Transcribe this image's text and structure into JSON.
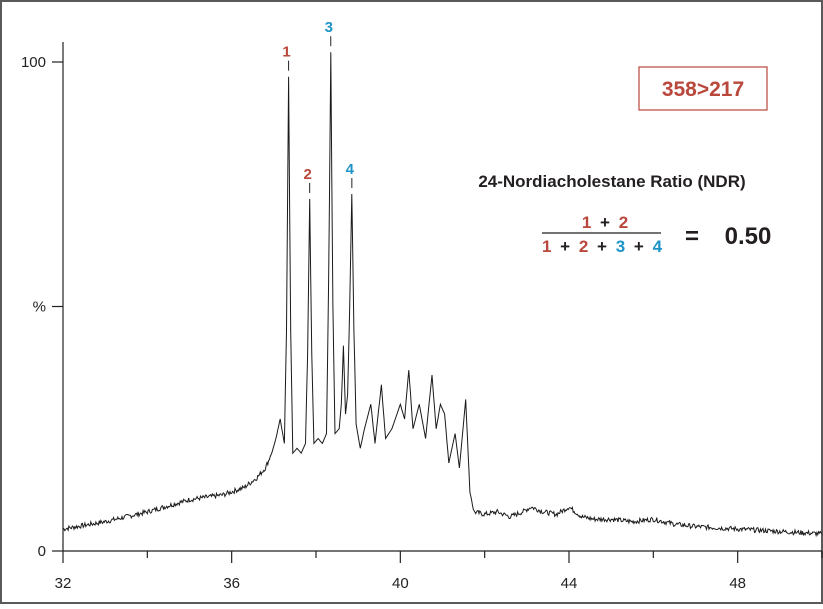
{
  "colors": {
    "red": "#b9473c",
    "blue": "#1d93c8",
    "text": "#231f20",
    "trace": "#1a1a1a",
    "frame": "#5a5a5a"
  },
  "ion_transition": "358>217",
  "ratio": {
    "title": "24-Nordiacholestane Ratio (NDR)",
    "numerator": [
      "1",
      "+",
      "2"
    ],
    "denominator": [
      "1",
      "+",
      "2",
      "+",
      "3",
      "+",
      "4"
    ],
    "equals": "=",
    "value": "0.50"
  },
  "chart_data": {
    "type": "line",
    "xlim": [
      32,
      50
    ],
    "ylim": [
      0,
      100
    ],
    "xticks": [
      "32",
      "36",
      "40",
      "44",
      "48"
    ],
    "yticks": [
      "0",
      "%",
      "100"
    ],
    "peak_labels": [
      {
        "label": "1",
        "x": 37.35,
        "y": 97,
        "color": "red"
      },
      {
        "label": "2",
        "x": 37.85,
        "y": 72,
        "color": "red"
      },
      {
        "label": "3",
        "x": 38.35,
        "y": 102,
        "color": "blue"
      },
      {
        "label": "4",
        "x": 38.85,
        "y": 73,
        "color": "blue"
      }
    ],
    "series": [
      {
        "points": [
          [
            32.0,
            4.5
          ],
          [
            33.0,
            6.0
          ],
          [
            34.0,
            8.0
          ],
          [
            35.0,
            10.5
          ],
          [
            35.8,
            11.5
          ],
          [
            36.3,
            13
          ],
          [
            36.6,
            15
          ],
          [
            36.8,
            17
          ],
          [
            36.95,
            20
          ],
          [
            37.05,
            23
          ],
          [
            37.15,
            27
          ],
          [
            37.25,
            22
          ],
          [
            37.3,
            45
          ],
          [
            37.35,
            97
          ],
          [
            37.4,
            45
          ],
          [
            37.45,
            20
          ],
          [
            37.55,
            21
          ],
          [
            37.65,
            20
          ],
          [
            37.75,
            22
          ],
          [
            37.8,
            40
          ],
          [
            37.85,
            72
          ],
          [
            37.9,
            40
          ],
          [
            37.95,
            22
          ],
          [
            38.05,
            23
          ],
          [
            38.15,
            22
          ],
          [
            38.25,
            24
          ],
          [
            38.3,
            55
          ],
          [
            38.35,
            102
          ],
          [
            38.4,
            50
          ],
          [
            38.45,
            24
          ],
          [
            38.55,
            25
          ],
          [
            38.6,
            30
          ],
          [
            38.65,
            42
          ],
          [
            38.7,
            28
          ],
          [
            38.75,
            32
          ],
          [
            38.8,
            50
          ],
          [
            38.85,
            73
          ],
          [
            38.9,
            45
          ],
          [
            38.95,
            26
          ],
          [
            39.05,
            21
          ],
          [
            39.15,
            25
          ],
          [
            39.3,
            30
          ],
          [
            39.4,
            22
          ],
          [
            39.55,
            34
          ],
          [
            39.65,
            23
          ],
          [
            39.8,
            25
          ],
          [
            40.0,
            30
          ],
          [
            40.1,
            27
          ],
          [
            40.2,
            37
          ],
          [
            40.3,
            25
          ],
          [
            40.45,
            30
          ],
          [
            40.6,
            23
          ],
          [
            40.75,
            36
          ],
          [
            40.85,
            25
          ],
          [
            40.95,
            30
          ],
          [
            41.05,
            28
          ],
          [
            41.15,
            18
          ],
          [
            41.3,
            24
          ],
          [
            41.4,
            17
          ],
          [
            41.55,
            31
          ],
          [
            41.65,
            12
          ],
          [
            41.75,
            8
          ],
          [
            42.0,
            7.5
          ],
          [
            42.3,
            8
          ],
          [
            42.6,
            7
          ],
          [
            42.9,
            8
          ],
          [
            43.1,
            9
          ],
          [
            43.4,
            8
          ],
          [
            43.7,
            7.5
          ],
          [
            44.0,
            9
          ],
          [
            44.3,
            7
          ],
          [
            44.6,
            6.5
          ],
          [
            45.0,
            6.5
          ],
          [
            45.5,
            6
          ],
          [
            46.0,
            6.5
          ],
          [
            46.5,
            5.5
          ],
          [
            47.0,
            5
          ],
          [
            48.0,
            4.5
          ],
          [
            49.0,
            4
          ],
          [
            50.0,
            3.5
          ]
        ]
      }
    ]
  }
}
